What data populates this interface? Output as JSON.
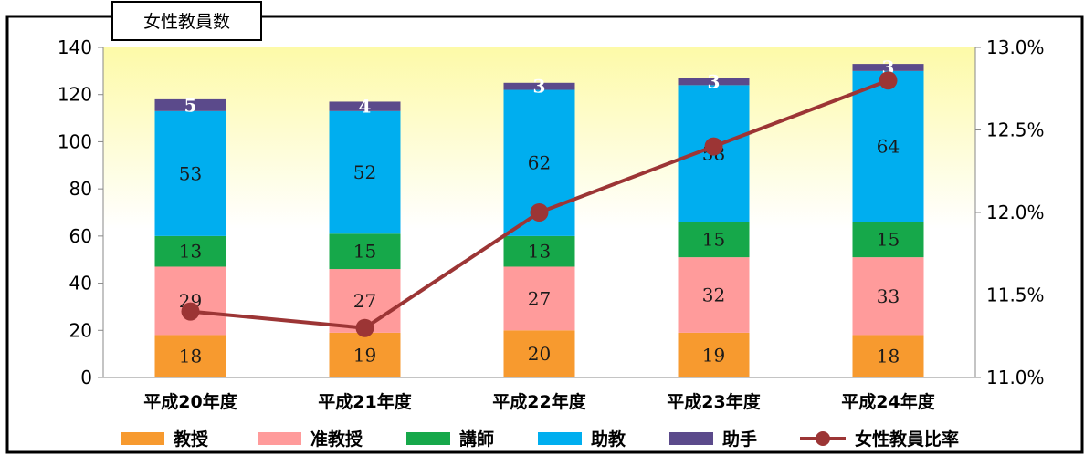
{
  "chart_data": {
    "type": "bar",
    "stacked": true,
    "title": "女性教員数",
    "categories": [
      "平成20年度",
      "平成21年度",
      "平成22年度",
      "平成23年度",
      "平成24年度"
    ],
    "series": [
      {
        "name": "教授",
        "values": [
          18,
          19,
          20,
          19,
          18
        ],
        "color": "#F79A2F",
        "label_color": "dark"
      },
      {
        "name": "准教授",
        "values": [
          29,
          27,
          27,
          32,
          33
        ],
        "color": "#FF9B9B",
        "label_color": "dark"
      },
      {
        "name": "講師",
        "values": [
          13,
          15,
          13,
          15,
          15
        ],
        "color": "#16A84A",
        "label_color": "dark"
      },
      {
        "name": "助教",
        "values": [
          53,
          52,
          62,
          58,
          64
        ],
        "color": "#00AEEF",
        "label_color": "dark"
      },
      {
        "name": "助手",
        "values": [
          5,
          4,
          3,
          3,
          3
        ],
        "color": "#5B4A8B",
        "label_color": "white"
      }
    ],
    "line_series": {
      "name": "女性教員比率",
      "values": [
        11.4,
        11.3,
        12.0,
        12.4,
        12.8
      ],
      "color": "#9C3535",
      "axis": "right"
    },
    "y_left": {
      "min": 0,
      "max": 140,
      "ticks": [
        "0",
        "20",
        "40",
        "60",
        "80",
        "100",
        "120",
        "140"
      ]
    },
    "y_right": {
      "min": 11.0,
      "max": 13.0,
      "ticks": [
        "11.0%",
        "11.5%",
        "12.0%",
        "12.5%",
        "13.0%"
      ]
    },
    "legend_position": "bottom",
    "grid": false,
    "background": "yellow-gradient"
  }
}
